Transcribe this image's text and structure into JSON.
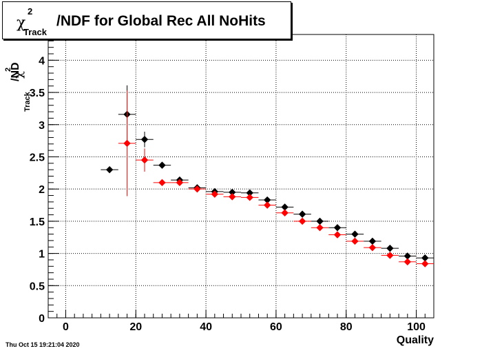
{
  "title": {
    "chi": "χ",
    "sup": "2",
    "sub": "Track",
    "rest": "/NDF for Global Rec All NoHits"
  },
  "ylabel": {
    "chi": "χ",
    "sup": "2",
    "sub": "Track",
    "rest": "/ND"
  },
  "xlabel": "Quality",
  "timestamp": "Thu Oct 15 19:21:04 2020",
  "chart_data": {
    "type": "scatter",
    "xlim": [
      -5,
      105
    ],
    "ylim": [
      0,
      4.4
    ],
    "x_ticks": [
      "0",
      "20",
      "40",
      "60",
      "80",
      "100"
    ],
    "y_ticks": [
      "0",
      "0.5",
      "1",
      "1.5",
      "2",
      "2.5",
      "3",
      "3.5",
      "4"
    ],
    "grid": true,
    "series": [
      {
        "color": "#000000",
        "points": [
          {
            "x": 12.5,
            "y": 2.3,
            "xerr": 2.5,
            "yerr": 0.0
          },
          {
            "x": 17.5,
            "y": 3.16,
            "xerr": 2.5,
            "yerr": 0.45
          },
          {
            "x": 22.5,
            "y": 2.77,
            "xerr": 2.5,
            "yerr": 0.12
          },
          {
            "x": 27.5,
            "y": 2.37,
            "xerr": 2.5,
            "yerr": 0.02
          },
          {
            "x": 32.5,
            "y": 2.14,
            "xerr": 2.5,
            "yerr": 0.01
          },
          {
            "x": 37.5,
            "y": 2.02,
            "xerr": 2.5,
            "yerr": 0.0
          },
          {
            "x": 42.5,
            "y": 1.96,
            "xerr": 2.5,
            "yerr": 0.0
          },
          {
            "x": 47.5,
            "y": 1.95,
            "xerr": 2.5,
            "yerr": 0.0
          },
          {
            "x": 52.5,
            "y": 1.94,
            "xerr": 2.5,
            "yerr": 0.0
          },
          {
            "x": 57.5,
            "y": 1.83,
            "xerr": 2.5,
            "yerr": 0.0
          },
          {
            "x": 62.5,
            "y": 1.72,
            "xerr": 2.5,
            "yerr": 0.0
          },
          {
            "x": 67.5,
            "y": 1.61,
            "xerr": 2.5,
            "yerr": 0.0
          },
          {
            "x": 72.5,
            "y": 1.5,
            "xerr": 2.5,
            "yerr": 0.0
          },
          {
            "x": 77.5,
            "y": 1.4,
            "xerr": 2.5,
            "yerr": 0.0
          },
          {
            "x": 82.5,
            "y": 1.3,
            "xerr": 2.5,
            "yerr": 0.0
          },
          {
            "x": 87.5,
            "y": 1.19,
            "xerr": 2.5,
            "yerr": 0.0
          },
          {
            "x": 92.5,
            "y": 1.08,
            "xerr": 2.5,
            "yerr": 0.0
          },
          {
            "x": 97.5,
            "y": 0.96,
            "xerr": 2.5,
            "yerr": 0.0
          },
          {
            "x": 102.5,
            "y": 0.93,
            "xerr": 2.5,
            "yerr": 0.0
          }
        ]
      },
      {
        "color": "#ff0000",
        "points": [
          {
            "x": 17.5,
            "y": 2.71,
            "xerr": 2.5,
            "yerr": 0.82
          },
          {
            "x": 22.5,
            "y": 2.45,
            "xerr": 2.5,
            "yerr": 0.18
          },
          {
            "x": 27.5,
            "y": 2.1,
            "xerr": 2.5,
            "yerr": 0.02
          },
          {
            "x": 32.5,
            "y": 2.1,
            "xerr": 2.5,
            "yerr": 0.01
          },
          {
            "x": 37.5,
            "y": 2.0,
            "xerr": 2.5,
            "yerr": 0.0
          },
          {
            "x": 42.5,
            "y": 1.92,
            "xerr": 2.5,
            "yerr": 0.0
          },
          {
            "x": 47.5,
            "y": 1.88,
            "xerr": 2.5,
            "yerr": 0.0
          },
          {
            "x": 52.5,
            "y": 1.87,
            "xerr": 2.5,
            "yerr": 0.0
          },
          {
            "x": 57.5,
            "y": 1.75,
            "xerr": 2.5,
            "yerr": 0.0
          },
          {
            "x": 62.5,
            "y": 1.63,
            "xerr": 2.5,
            "yerr": 0.0
          },
          {
            "x": 67.5,
            "y": 1.5,
            "xerr": 2.5,
            "yerr": 0.0
          },
          {
            "x": 72.5,
            "y": 1.4,
            "xerr": 2.5,
            "yerr": 0.0
          },
          {
            "x": 77.5,
            "y": 1.29,
            "xerr": 2.5,
            "yerr": 0.0
          },
          {
            "x": 82.5,
            "y": 1.19,
            "xerr": 2.5,
            "yerr": 0.0
          },
          {
            "x": 87.5,
            "y": 1.09,
            "xerr": 2.5,
            "yerr": 0.0
          },
          {
            "x": 92.5,
            "y": 0.97,
            "xerr": 2.5,
            "yerr": 0.0
          },
          {
            "x": 97.5,
            "y": 0.87,
            "xerr": 2.5,
            "yerr": 0.0
          },
          {
            "x": 102.5,
            "y": 0.84,
            "xerr": 2.5,
            "yerr": 0.0
          }
        ]
      }
    ]
  }
}
